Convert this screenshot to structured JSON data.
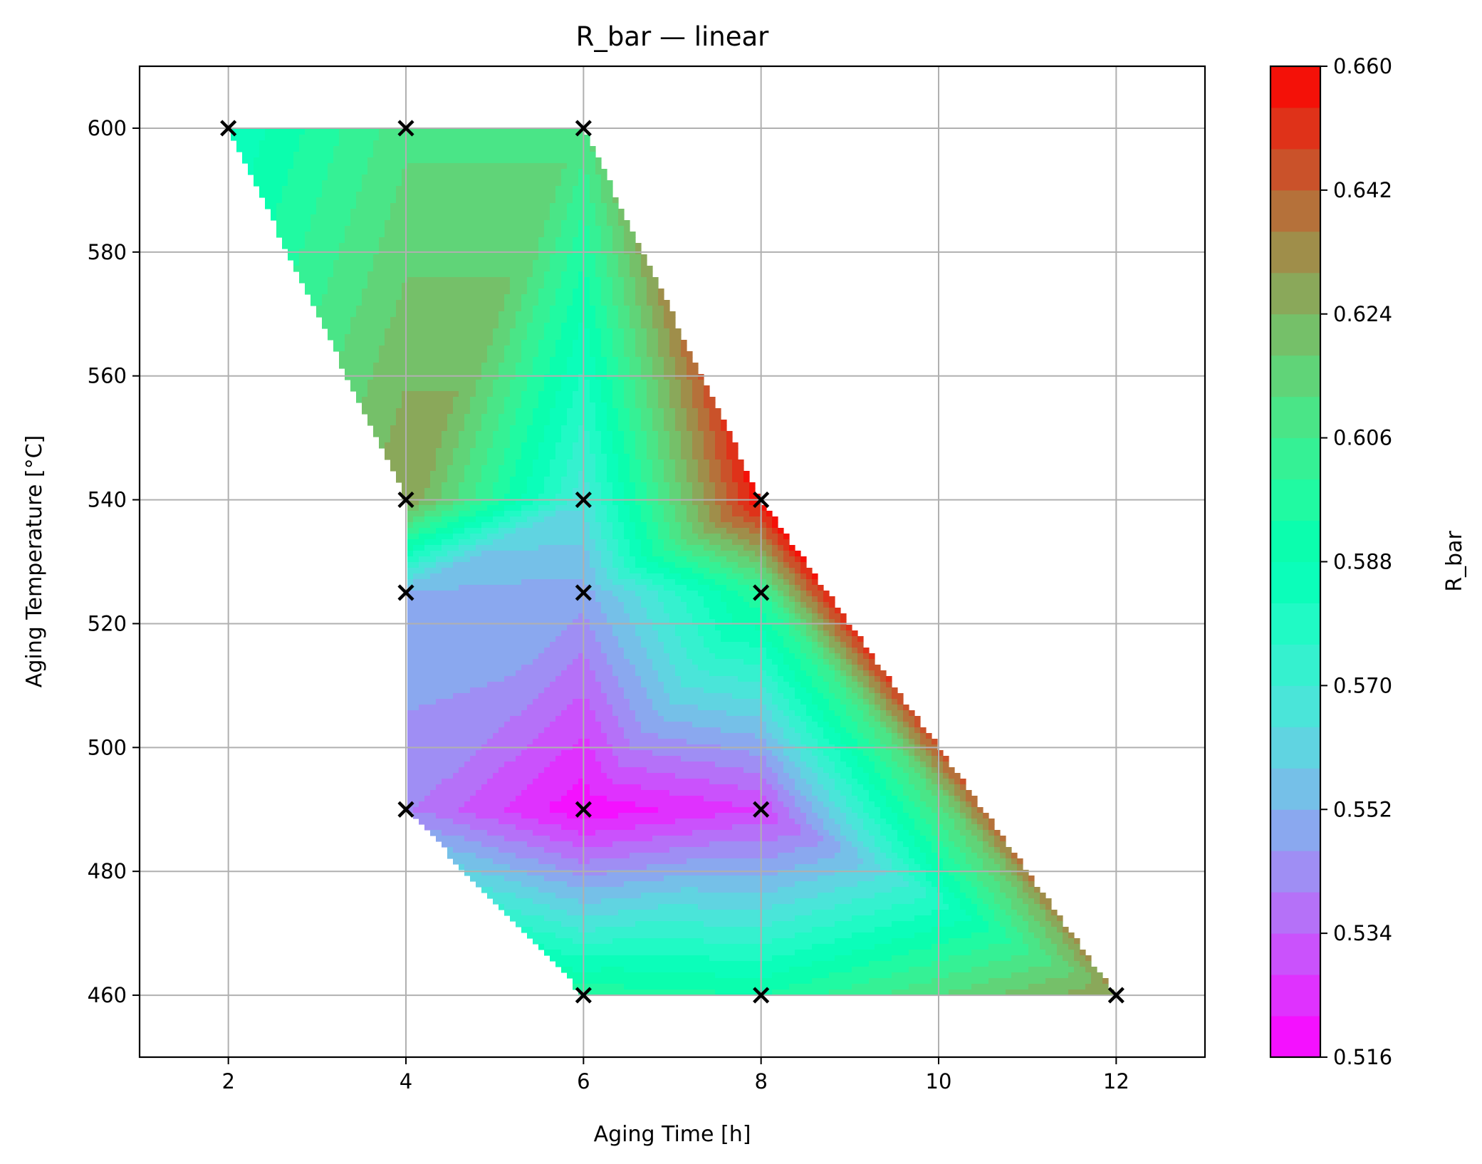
{
  "chart_data": {
    "type": "contour",
    "title": "R_bar — linear",
    "xlabel": "Aging Time [h]",
    "ylabel": "Aging Temperature [°C]",
    "xlim": [
      1,
      13
    ],
    "ylim": [
      450,
      610
    ],
    "xticks": [
      2,
      4,
      6,
      8,
      10,
      12
    ],
    "yticks": [
      460,
      480,
      500,
      520,
      540,
      560,
      580,
      600
    ],
    "grid": true,
    "colormap": "rainbow",
    "colorbar": {
      "label": "R_bar",
      "range": [
        0.516,
        0.66
      ],
      "ticks": [
        "0.516",
        "0.534",
        "0.552",
        "0.570",
        "0.588",
        "0.606",
        "0.624",
        "0.642",
        "0.660"
      ],
      "levels": 24
    },
    "interpolation": "linear",
    "points": [
      {
        "x": 2,
        "y": 600,
        "value": 0.582
      },
      {
        "x": 4,
        "y": 600,
        "value": 0.61
      },
      {
        "x": 6,
        "y": 600,
        "value": 0.61
      },
      {
        "x": 4,
        "y": 540,
        "value": 0.63
      },
      {
        "x": 6,
        "y": 540,
        "value": 0.566
      },
      {
        "x": 8,
        "y": 540,
        "value": 0.66
      },
      {
        "x": 4,
        "y": 525,
        "value": 0.552
      },
      {
        "x": 6,
        "y": 525,
        "value": 0.549
      },
      {
        "x": 8,
        "y": 525,
        "value": 0.6
      },
      {
        "x": 4,
        "y": 490,
        "value": 0.541
      },
      {
        "x": 6,
        "y": 490,
        "value": 0.517
      },
      {
        "x": 8,
        "y": 490,
        "value": 0.528
      },
      {
        "x": 6,
        "y": 460,
        "value": 0.598
      },
      {
        "x": 8,
        "y": 460,
        "value": 0.594
      },
      {
        "x": 12,
        "y": 460,
        "value": 0.63
      }
    ],
    "marker": "x"
  }
}
